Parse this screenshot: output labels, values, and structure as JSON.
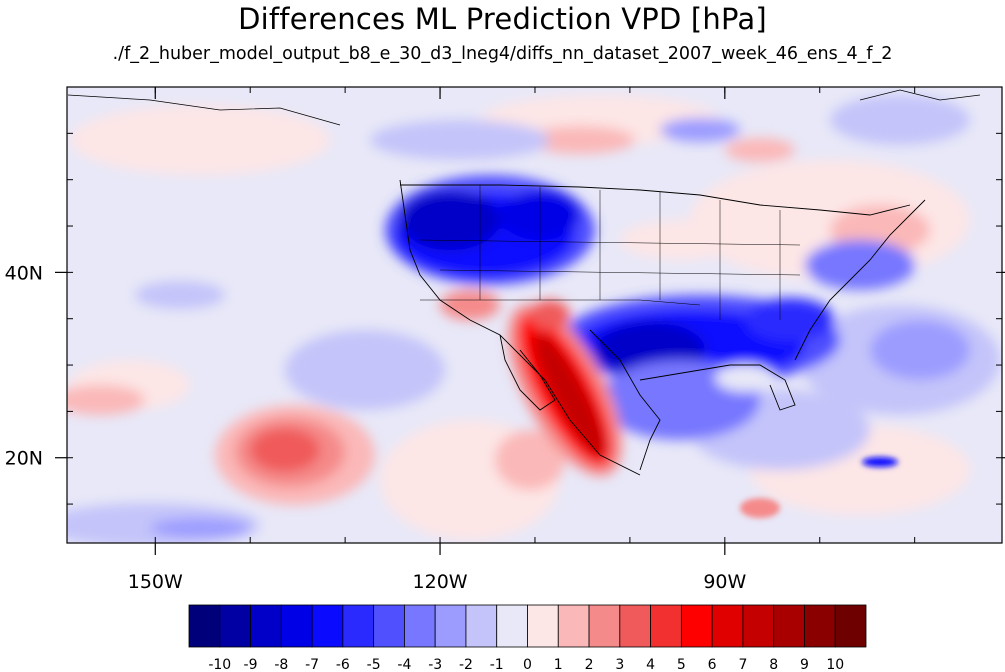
{
  "title": "Differences ML Prediction VPD [hPa]",
  "subtitle": "./f_2_huber_model_output_b8_e_30_d3_lneg4/diffs_nn_dataset_2007_week_46_ens_4_f_2",
  "map": {
    "lon_ticks": [
      {
        "lon": -150,
        "label": "150W"
      },
      {
        "lon": -120,
        "label": "120W"
      },
      {
        "lon": -90,
        "label": "90W"
      }
    ],
    "lat_ticks": [
      {
        "lat": 40,
        "label": "40N"
      },
      {
        "lat": 20,
        "label": "20N"
      }
    ],
    "lon_range": [
      -159.3,
      -60.8
    ],
    "lat_range": [
      10.8,
      60
    ]
  },
  "colorbar": {
    "labels": [
      "-10",
      "-9",
      "-8",
      "-7",
      "-6",
      "-5",
      "-4",
      "-3",
      "-2",
      "-1",
      "0",
      "1",
      "2",
      "3",
      "4",
      "5",
      "6",
      "7",
      "8",
      "9",
      "10"
    ],
    "colors": [
      "#00007a",
      "#0000a3",
      "#0000c8",
      "#0000e6",
      "#0a0aff",
      "#2a2aff",
      "#5050ff",
      "#7777ff",
      "#9c9cff",
      "#c4c4fa",
      "#e8e8f8",
      "#fde6e6",
      "#fbb8b8",
      "#f58a8a",
      "#f05a5a",
      "#f23030",
      "#ff0000",
      "#e00000",
      "#c40000",
      "#a80000",
      "#8a0000",
      "#6e0000"
    ]
  }
}
